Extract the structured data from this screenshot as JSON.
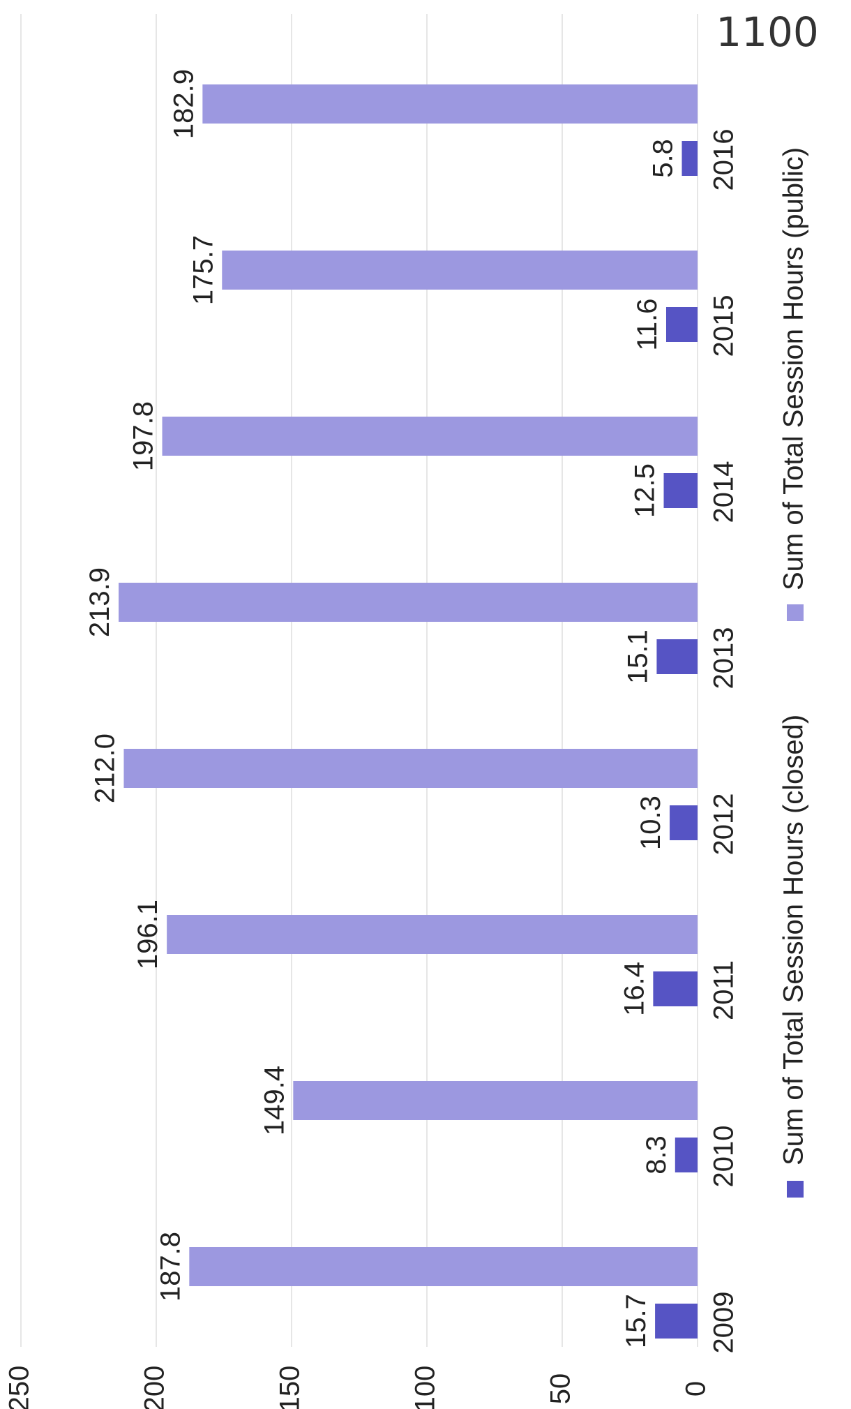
{
  "chart_data": {
    "type": "bar",
    "orientation": "rotated",
    "categories": [
      "2009",
      "2010",
      "2011",
      "2012",
      "2013",
      "2014",
      "2015",
      "2016"
    ],
    "series": [
      {
        "name": "Sum of Total Session Hours (closed)",
        "color": "#5654c4",
        "values": [
          15.7,
          8.3,
          16.4,
          10.3,
          15.1,
          12.5,
          11.6,
          5.8
        ],
        "labels": [
          "15.7",
          "8.3",
          "16.4",
          "10.3",
          "15.1",
          "12.5",
          "11.6",
          "5.8"
        ]
      },
      {
        "name": "Sum of Total Session Hours (public)",
        "color": "#9c98e0",
        "values": [
          187.8,
          149.4,
          196.1,
          212.0,
          213.9,
          197.8,
          175.7,
          182.9
        ],
        "labels": [
          "187.8",
          "149.4",
          "196.1",
          "212.0",
          "213.9",
          "197.8",
          "175.7",
          "182.9"
        ]
      }
    ],
    "ylim": [
      0,
      250
    ],
    "yticks": [
      "0",
      "50",
      "100",
      "150",
      "200",
      "250"
    ],
    "grid": true,
    "legend_position": "bottom",
    "annotation": "1100"
  }
}
